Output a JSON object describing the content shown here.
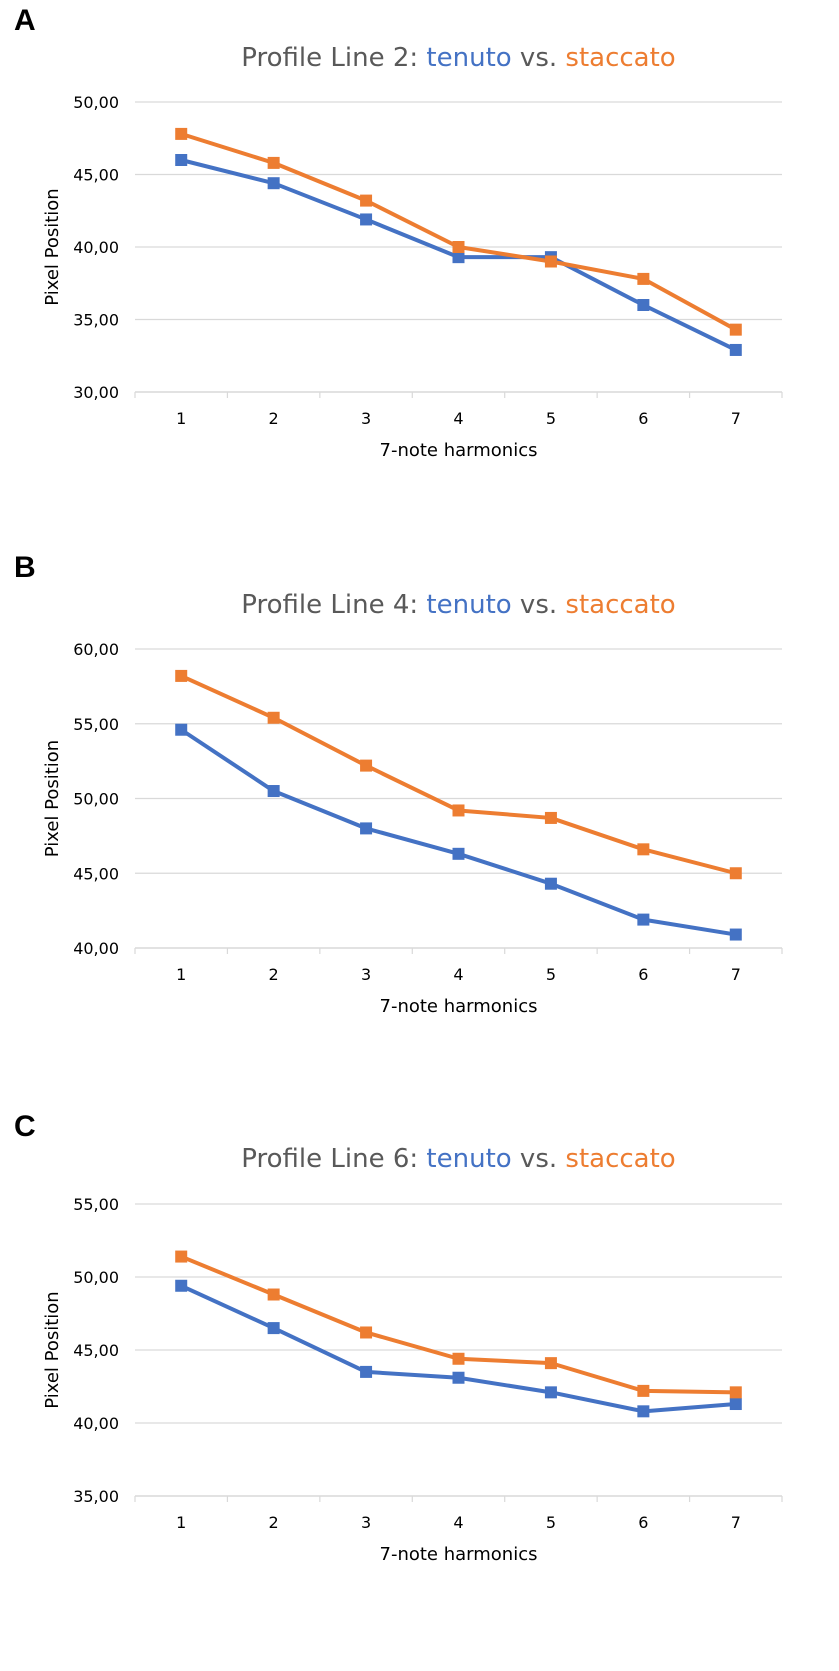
{
  "colors": {
    "tenuto": "#4472C4",
    "staccato": "#ED7D31",
    "title_gray": "#595959",
    "grid": "#D9D9D9",
    "axis_text": "#000000"
  },
  "chart_data": [
    {
      "panel_label": "A",
      "type": "line",
      "title": {
        "prefix": "Profile Line 2: ",
        "series1": "tenuto",
        "middle": " vs. ",
        "series2": "staccato"
      },
      "xlabel": "7-note harmonics",
      "ylabel": "Pixel Position",
      "categories": [
        "1",
        "2",
        "3",
        "4",
        "5",
        "6",
        "7"
      ],
      "ylim": [
        30,
        50
      ],
      "yticks": [
        30,
        35,
        40,
        45,
        50
      ],
      "ytick_labels": [
        "30,00",
        "35,00",
        "40,00",
        "45,00",
        "50,00"
      ],
      "grid": true,
      "series": [
        {
          "name": "tenuto",
          "color": "#4472C4",
          "values": [
            46.0,
            44.4,
            41.9,
            39.3,
            39.3,
            36.0,
            32.9
          ]
        },
        {
          "name": "staccato",
          "color": "#ED7D31",
          "values": [
            47.8,
            45.8,
            43.2,
            40.0,
            39.0,
            37.8,
            34.3
          ]
        }
      ]
    },
    {
      "panel_label": "B",
      "type": "line",
      "title": {
        "prefix": "Profile Line 4: ",
        "series1": "tenuto",
        "middle": " vs. ",
        "series2": "staccato"
      },
      "xlabel": "7-note harmonics",
      "ylabel": "Pixel Position",
      "categories": [
        "1",
        "2",
        "3",
        "4",
        "5",
        "6",
        "7"
      ],
      "ylim": [
        40,
        60
      ],
      "yticks": [
        40,
        45,
        50,
        55,
        60
      ],
      "ytick_labels": [
        "40,00",
        "45,00",
        "50,00",
        "55,00",
        "60,00"
      ],
      "grid": true,
      "series": [
        {
          "name": "tenuto",
          "color": "#4472C4",
          "values": [
            54.6,
            50.5,
            48.0,
            46.3,
            44.3,
            41.9,
            40.9
          ]
        },
        {
          "name": "staccato",
          "color": "#ED7D31",
          "values": [
            58.2,
            55.4,
            52.2,
            49.2,
            48.7,
            46.6,
            45.0
          ]
        }
      ]
    },
    {
      "panel_label": "C",
      "type": "line",
      "title": {
        "prefix": "Profile Line 6: ",
        "series1": "tenuto",
        "middle": " vs. ",
        "series2": "staccato"
      },
      "xlabel": "7-note harmonics",
      "ylabel": "Pixel Position",
      "categories": [
        "1",
        "2",
        "3",
        "4",
        "5",
        "6",
        "7"
      ],
      "ylim": [
        35,
        55
      ],
      "yticks": [
        35,
        40,
        45,
        50,
        55
      ],
      "ytick_labels": [
        "35,00",
        "40,00",
        "45,00",
        "50,00",
        "55,00"
      ],
      "grid": true,
      "series": [
        {
          "name": "tenuto",
          "color": "#4472C4",
          "values": [
            49.4,
            46.5,
            43.5,
            43.1,
            42.1,
            40.8,
            41.3
          ]
        },
        {
          "name": "staccato",
          "color": "#ED7D31",
          "values": [
            51.4,
            48.8,
            46.2,
            44.4,
            44.1,
            42.2,
            42.1
          ]
        }
      ]
    }
  ]
}
